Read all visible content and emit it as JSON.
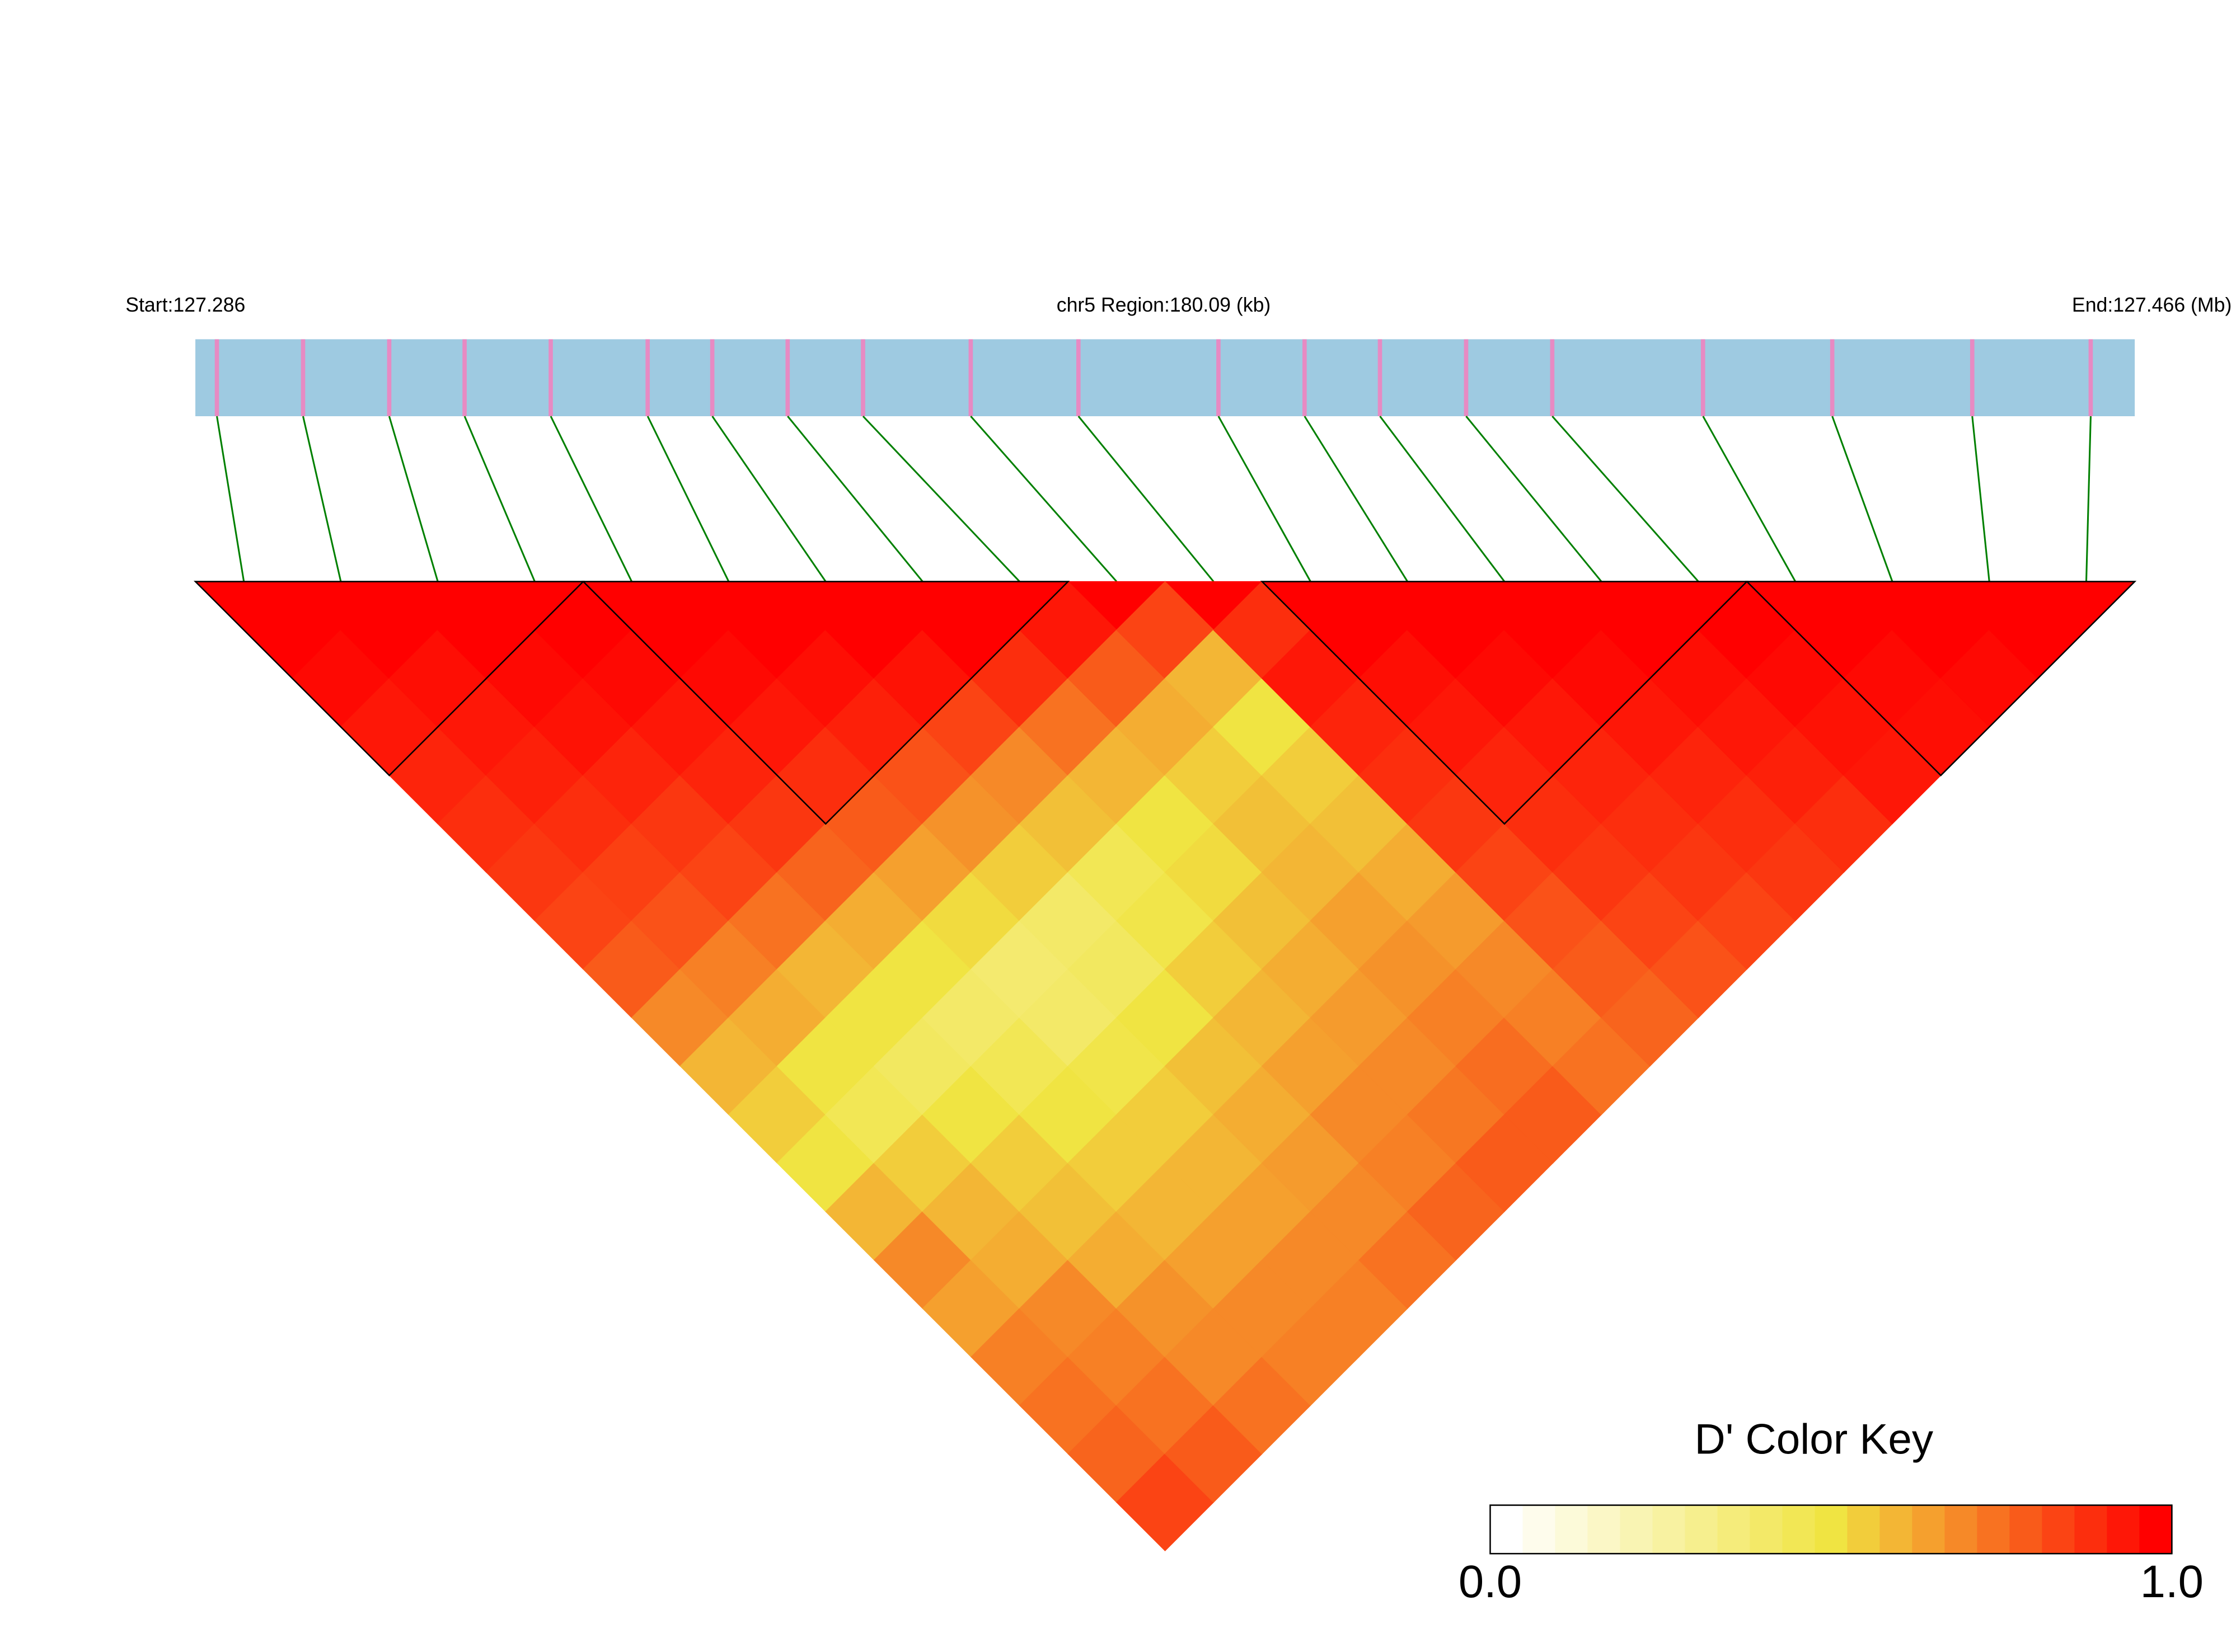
{
  "chart_data": {
    "type": "heatmap",
    "start_label": "Start:127.286",
    "region_label": "chr5 Region:180.09 (kb)",
    "end_label": "End:127.466 (Mb)",
    "xlim": [
      0,
      180.09
    ],
    "snp_positions": [
      2,
      10,
      18,
      25,
      33,
      42,
      48,
      55,
      62,
      72,
      82,
      95,
      103,
      110,
      118,
      126,
      140,
      152,
      165,
      176
    ],
    "ld_matrix": [
      [
        1,
        0.98,
        0.95,
        0.92,
        0.9,
        0.88,
        0.85,
        0.8,
        0.7,
        0.6,
        0.55,
        0.5,
        0.6,
        0.7,
        0.65,
        0.72,
        0.75,
        0.78,
        0.85
      ],
      [
        1,
        0.97,
        0.95,
        0.93,
        0.9,
        0.86,
        0.82,
        0.72,
        0.62,
        0.5,
        0.45,
        0.55,
        0.6,
        0.62,
        0.7,
        0.72,
        0.75,
        0.8
      ],
      [
        1,
        0.98,
        0.96,
        0.92,
        0.88,
        0.85,
        0.75,
        0.6,
        0.5,
        0.42,
        0.5,
        0.55,
        0.58,
        0.62,
        0.68,
        0.7,
        0.75
      ],
      [
        1,
        0.98,
        0.95,
        0.92,
        0.88,
        0.78,
        0.62,
        0.5,
        0.4,
        0.45,
        0.5,
        0.55,
        0.6,
        0.65,
        0.7,
        0.72
      ],
      [
        1,
        0.98,
        0.95,
        0.9,
        0.8,
        0.65,
        0.52,
        0.38,
        0.4,
        0.48,
        0.55,
        0.6,
        0.65,
        0.7,
        0.72
      ],
      [
        1,
        0.97,
        0.93,
        0.82,
        0.68,
        0.55,
        0.4,
        0.42,
        0.5,
        0.58,
        0.62,
        0.66,
        0.7,
        0.75
      ],
      [
        1,
        0.96,
        0.85,
        0.7,
        0.58,
        0.45,
        0.48,
        0.55,
        0.6,
        0.65,
        0.7,
        0.72,
        0.78
      ],
      [
        1,
        0.9,
        0.75,
        0.6,
        0.5,
        0.52,
        0.58,
        0.62,
        0.66,
        0.7,
        0.74,
        0.8
      ],
      [
        0.95,
        0.8,
        0.62,
        0.55,
        0.58,
        0.6,
        0.65,
        0.68,
        0.72,
        0.76,
        0.8
      ],
      [
        0.85,
        0.6,
        0.5,
        0.55,
        0.58,
        0.62,
        0.66,
        0.7,
        0.72,
        0.75
      ],
      [
        0.9,
        0.95,
        0.92,
        0.9,
        0.88,
        0.85,
        0.82,
        0.8,
        0.78
      ],
      [
        1,
        0.97,
        0.95,
        0.92,
        0.9,
        0.88,
        0.85,
        0.82
      ],
      [
        1,
        0.98,
        0.95,
        0.92,
        0.9,
        0.88,
        0.85
      ],
      [
        1,
        0.98,
        0.95,
        0.92,
        0.9,
        0.88
      ],
      [
        1,
        0.97,
        0.95,
        0.93,
        0.9
      ],
      [
        1,
        0.98,
        0.96,
        0.95
      ],
      [
        1,
        0.98,
        0.97
      ],
      [
        1,
        0.98
      ],
      [
        1
      ]
    ],
    "blocks": [
      [
        0,
        3
      ],
      [
        4,
        8
      ],
      [
        11,
        15
      ],
      [
        16,
        19
      ]
    ],
    "colorscale": [
      "#ffffff",
      "#f0e442",
      "#ff0000"
    ],
    "color_key": {
      "title": "D' Color Key",
      "steps": 21,
      "ticks": [
        {
          "value": 0,
          "label": "0.0"
        },
        {
          "value": 1,
          "label": "1.0"
        }
      ]
    }
  }
}
